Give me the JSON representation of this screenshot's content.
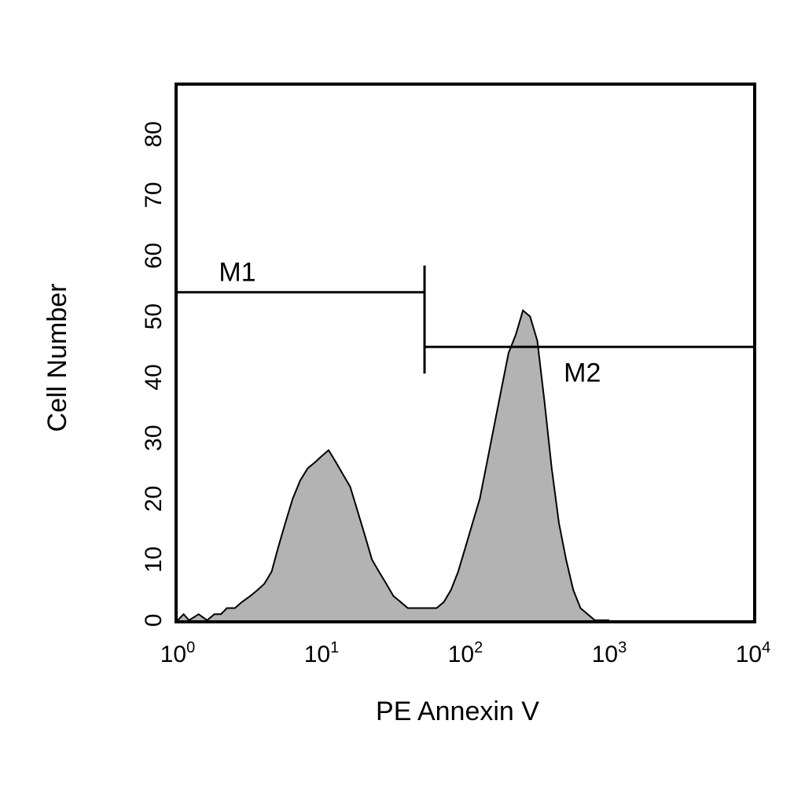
{
  "chart_data": {
    "type": "area",
    "title": "",
    "xlabel": "PE Annexin V",
    "ylabel": "Cell Number",
    "x_scale": "log",
    "xlim": [
      1,
      10000
    ],
    "ylim": [
      0,
      88
    ],
    "x_ticks": [
      {
        "base": "10",
        "exp": "0",
        "value": 1
      },
      {
        "base": "10",
        "exp": "1",
        "value": 10
      },
      {
        "base": "10",
        "exp": "2",
        "value": 100
      },
      {
        "base": "10",
        "exp": "3",
        "value": 1000
      },
      {
        "base": "10",
        "exp": "4",
        "value": 10000
      }
    ],
    "y_ticks": [
      "0",
      "10",
      "20",
      "30",
      "40",
      "50",
      "60",
      "70",
      "80"
    ],
    "grid": false,
    "fill_color": "#b3b3b3",
    "line_color": "#000000",
    "series": [
      {
        "x": [
          1.0,
          1.1,
          1.2,
          1.4,
          1.6,
          1.8,
          2.0,
          2.2,
          2.5,
          2.8,
          3.2,
          3.6,
          4.0,
          4.5,
          5.0,
          5.6,
          6.3,
          7.1,
          8.0,
          9.0,
          10.0,
          11.2,
          12.6,
          14.1,
          15.8,
          17.8,
          20.0,
          22.4,
          25.1,
          28.2,
          31.6,
          35.5,
          39.8,
          44.7,
          50.1,
          56.2,
          63.1,
          70.8,
          79.4,
          89.1,
          100.0,
          112.2,
          125.9,
          141.3,
          158.5,
          177.8,
          199.5,
          223.9,
          251.2,
          281.8,
          316.2,
          354.8,
          398.1,
          446.7,
          501.2,
          562.3,
          631.0,
          707.9,
          794.3,
          891.3,
          1000.0
        ],
        "y": [
          0,
          1,
          0,
          1,
          0,
          1,
          1,
          2,
          2,
          3,
          4,
          5,
          6,
          8,
          12,
          16,
          20,
          23,
          25,
          26,
          27,
          28,
          26,
          24,
          22,
          18,
          14,
          10,
          8,
          6,
          4,
          3,
          2,
          2,
          2,
          2,
          2,
          3,
          5,
          8,
          12,
          16,
          20,
          26,
          32,
          38,
          44,
          47,
          51,
          50,
          46,
          36,
          25,
          16,
          10,
          5,
          2,
          1,
          0,
          0,
          0
        ]
      }
    ],
    "markers": [
      {
        "label": "M1",
        "from": 1,
        "to": 52,
        "y": 54,
        "label_at": 2.6
      },
      {
        "label": "M2",
        "from": 52,
        "to": 10000,
        "y": 45,
        "label_at": 650
      }
    ]
  }
}
